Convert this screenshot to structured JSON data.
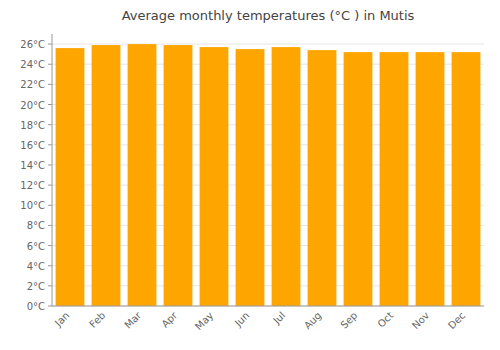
{
  "chart_data": {
    "type": "bar",
    "title": "Average monthly temperatures (°C ) in Mutis",
    "categories": [
      "Jan",
      "Feb",
      "Mar",
      "Apr",
      "May",
      "Jun",
      "Jul",
      "Aug",
      "Sep",
      "Oct",
      "Nov",
      "Dec"
    ],
    "values": [
      25.6,
      25.9,
      26.0,
      25.9,
      25.7,
      25.5,
      25.7,
      25.4,
      25.2,
      25.2,
      25.2,
      25.2
    ],
    "color": "#FFA500",
    "ylim": [
      0,
      27
    ],
    "yticks": [
      {
        "value": 0,
        "label": "0°C"
      },
      {
        "value": 2,
        "label": "2°C"
      },
      {
        "value": 4,
        "label": "4°C"
      },
      {
        "value": 6,
        "label": "6°C"
      },
      {
        "value": 8,
        "label": "8°C"
      },
      {
        "value": 10,
        "label": "10°C"
      },
      {
        "value": 12,
        "label": "12°C"
      },
      {
        "value": 14,
        "label": "14°C"
      },
      {
        "value": 16,
        "label": "16°C"
      },
      {
        "value": 18,
        "label": "18°C"
      },
      {
        "value": 20,
        "label": "20°C"
      },
      {
        "value": 22,
        "label": "22°C"
      },
      {
        "value": 24,
        "label": "24°C"
      },
      {
        "value": 26,
        "label": "26°C"
      }
    ],
    "grid": true
  }
}
